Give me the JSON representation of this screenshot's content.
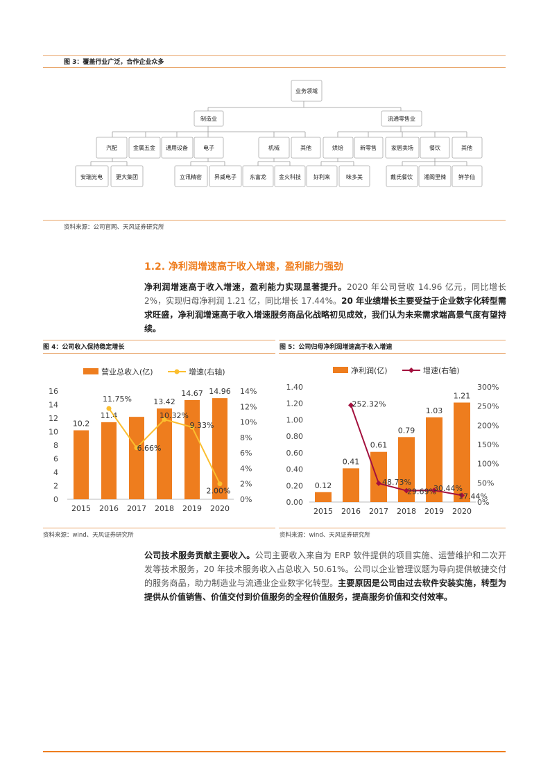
{
  "fig3": {
    "title": "图 3：覆盖行业广泛，合作企业众多",
    "root": "业务领域",
    "manufacturing": "制造业",
    "retail": "流通零售业",
    "mfg_items": [
      "汽配",
      "金属五金",
      "通用设备",
      "电子",
      "机械",
      "其他"
    ],
    "retail_items": [
      "烘焙",
      "新零售",
      "家居卖场",
      "餐饮",
      "其他"
    ],
    "companies": [
      "安瑞光电",
      "更大集团",
      "立讯精密",
      "昇威电子",
      "东富龙",
      "金火科技",
      "好利来",
      "味多美",
      "戴氏餐饮",
      "湘阁里辣",
      "鲜芋仙"
    ],
    "source": "资料来源：公司官网、天风证券研究所"
  },
  "section": {
    "heading": "1.2. 净利润增速高于收入增速，盈利能力强劲",
    "p1_bold1": "净利润增速高于收入增速，盈利能力实现显著提升。",
    "p1_text1": "2020 年公司营收 14.96 亿元，同比增长 2%，实现归母净利润 1.21 亿，同比增长 17.44%。",
    "p1_bold2": "20 年业绩增长主要受益于企业数字化转型需求旺盛，净利润增速高于收入增速服务商品化战略初见成效，我们认为未来需求端高景气度有望持续。",
    "p2_bold1": "公司技术服务贡献主要收入。",
    "p2_text1": "公司主要收入来自为 ERP 软件提供的项目实施、运营维护和二次开发等技术服务，20 年技术服务收入占总收入 50.61%。公司以企业管理议题为导向提供敏捷交付的服务商品，助力制造业与流通业企业数字化转型。",
    "p2_bold2": "主要原因是公司由过去软件安装实施，转型为提供从价值销售、价值交付到价值服务的全程价值服务，提高服务价值和交付效率。"
  },
  "fig4": {
    "title": "图 4：公司收入保持稳定增长",
    "source": "资料来源：wind、天风证券研究所"
  },
  "fig5": {
    "title": "图 5：公司归母净利润增速高于收入增速",
    "source": "资料来源：wind、天风证券研究所"
  },
  "colors": {
    "bar": "#ee7d1e",
    "line4": "#fbbe2f",
    "line5": "#a3103d",
    "accent": "#ee7d1e"
  },
  "chart_data": [
    {
      "type": "bar",
      "categories": [
        "2015",
        "2016",
        "2017",
        "2018",
        "2019",
        "2020"
      ],
      "series": [
        {
          "name": "营业总收入(亿)",
          "values": [
            10.2,
            11.4,
            12.19,
            13.42,
            14.67,
            14.96
          ],
          "labels": [
            "10.2",
            "11.4",
            "",
            "13.42",
            "14.67",
            "14.96"
          ],
          "axis": "left"
        },
        {
          "name": "增速(右轴)",
          "type": "line",
          "values": [
            null,
            11.75,
            6.66,
            10.32,
            9.33,
            2.0
          ],
          "labels": [
            "",
            "11.75%",
            "6.66%",
            "10.32%",
            "9.33%",
            "2.00%"
          ],
          "axis": "right"
        }
      ],
      "ylim": [
        0,
        16
      ],
      "yticks": [
        "0",
        "2",
        "4",
        "6",
        "8",
        "10",
        "12",
        "14",
        "16"
      ],
      "y2lim": [
        0,
        14
      ],
      "y2ticks": [
        "0%",
        "2%",
        "4%",
        "6%",
        "8%",
        "10%",
        "12%",
        "14%"
      ],
      "legend": "top"
    },
    {
      "type": "bar",
      "categories": [
        "2015",
        "2016",
        "2017",
        "2018",
        "2019",
        "2020"
      ],
      "series": [
        {
          "name": "净利润(亿)",
          "values": [
            0.12,
            0.41,
            0.61,
            0.79,
            1.03,
            1.21
          ],
          "labels": [
            "0.12",
            "0.41",
            "0.61",
            "0.79",
            "1.03",
            "1.21"
          ],
          "axis": "left"
        },
        {
          "name": "增速(右轴)",
          "type": "line",
          "values": [
            null,
            252.32,
            48.73,
            29.69,
            30.44,
            17.44
          ],
          "labels": [
            "",
            "252.32%",
            "48.73%",
            "29.69%",
            "30.44%",
            "17.44%"
          ],
          "axis": "right"
        }
      ],
      "ylim": [
        0,
        1.4
      ],
      "yticks": [
        "0.00",
        "0.20",
        "0.40",
        "0.60",
        "0.80",
        "1.00",
        "1.20",
        "1.40"
      ],
      "y2lim": [
        0,
        300
      ],
      "y2ticks": [
        "0%",
        "50%",
        "100%",
        "150%",
        "200%",
        "250%",
        "300%"
      ],
      "legend": "top"
    }
  ]
}
